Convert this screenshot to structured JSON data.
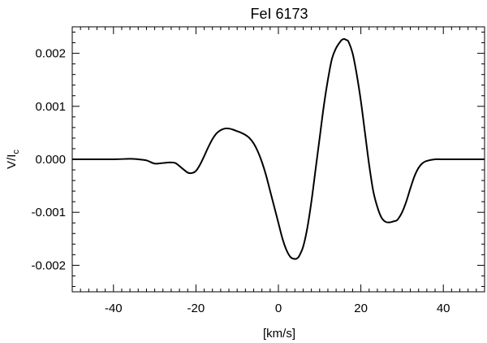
{
  "chart_data": {
    "type": "line",
    "title": "FeI 6173",
    "xlabel": "[km/s]",
    "ylabel": "V/I",
    "ylabel_subscript": "c",
    "xlim": [
      -50,
      50
    ],
    "ylim": [
      -0.0025,
      0.0025
    ],
    "x_ticks": [
      -40,
      -20,
      0,
      20,
      40
    ],
    "x_tick_labels": [
      "-40",
      "-20",
      "0",
      "20",
      "40"
    ],
    "y_ticks": [
      -0.002,
      -0.001,
      0.0,
      0.001,
      0.002
    ],
    "y_tick_labels": [
      "-0.002",
      "-0.001",
      "0.000",
      "0.001",
      "0.002"
    ],
    "grid": false,
    "line_color": "#000000",
    "series": [
      {
        "x": [
          -50,
          -40,
          -36,
          -34,
          -32,
          -30,
          -28,
          -26.5,
          -25,
          -23.5,
          -22,
          -21,
          -20,
          -19,
          -18,
          -17,
          -16,
          -15,
          -14,
          -13,
          -12,
          -11,
          -10,
          -9,
          -8,
          -7,
          -6,
          -5,
          -4,
          -3,
          -2,
          -1,
          0,
          1,
          2,
          3,
          4,
          4.5,
          5,
          6,
          7,
          8,
          9,
          10,
          11,
          12,
          13,
          14,
          15,
          15.5,
          16,
          16.5,
          17,
          18,
          19,
          20,
          21,
          22,
          23,
          24,
          25,
          26,
          27,
          28,
          28.5,
          29,
          30,
          31,
          32,
          33,
          34,
          35,
          36,
          38,
          40,
          45,
          50
        ],
        "y": [
          0.0,
          0.0,
          1e-05,
          0.0,
          -2e-05,
          -8e-05,
          -7e-05,
          -6e-05,
          -7e-05,
          -0.00016,
          -0.00025,
          -0.00026,
          -0.00022,
          -0.0001,
          6e-05,
          0.00023,
          0.00038,
          0.00049,
          0.00055,
          0.00058,
          0.00058,
          0.00056,
          0.00053,
          0.0005,
          0.00046,
          0.0004,
          0.0003,
          0.00015,
          -5e-05,
          -0.0003,
          -0.0006,
          -0.0009,
          -0.0012,
          -0.0015,
          -0.00172,
          -0.00185,
          -0.00188,
          -0.00187,
          -0.00183,
          -0.00165,
          -0.0013,
          -0.0008,
          -0.0002,
          0.0004,
          0.001,
          0.0015,
          0.0019,
          0.0021,
          0.00222,
          0.00226,
          0.00227,
          0.00225,
          0.00222,
          0.002,
          0.0016,
          0.0011,
          0.0005,
          -0.0001,
          -0.0006,
          -0.0009,
          -0.0011,
          -0.00118,
          -0.00119,
          -0.00117,
          -0.00116,
          -0.00113,
          -0.001,
          -0.0008,
          -0.00055,
          -0.00032,
          -0.00016,
          -7e-05,
          -3e-05,
          0.0,
          0.0,
          0.0,
          0.0
        ]
      }
    ]
  }
}
